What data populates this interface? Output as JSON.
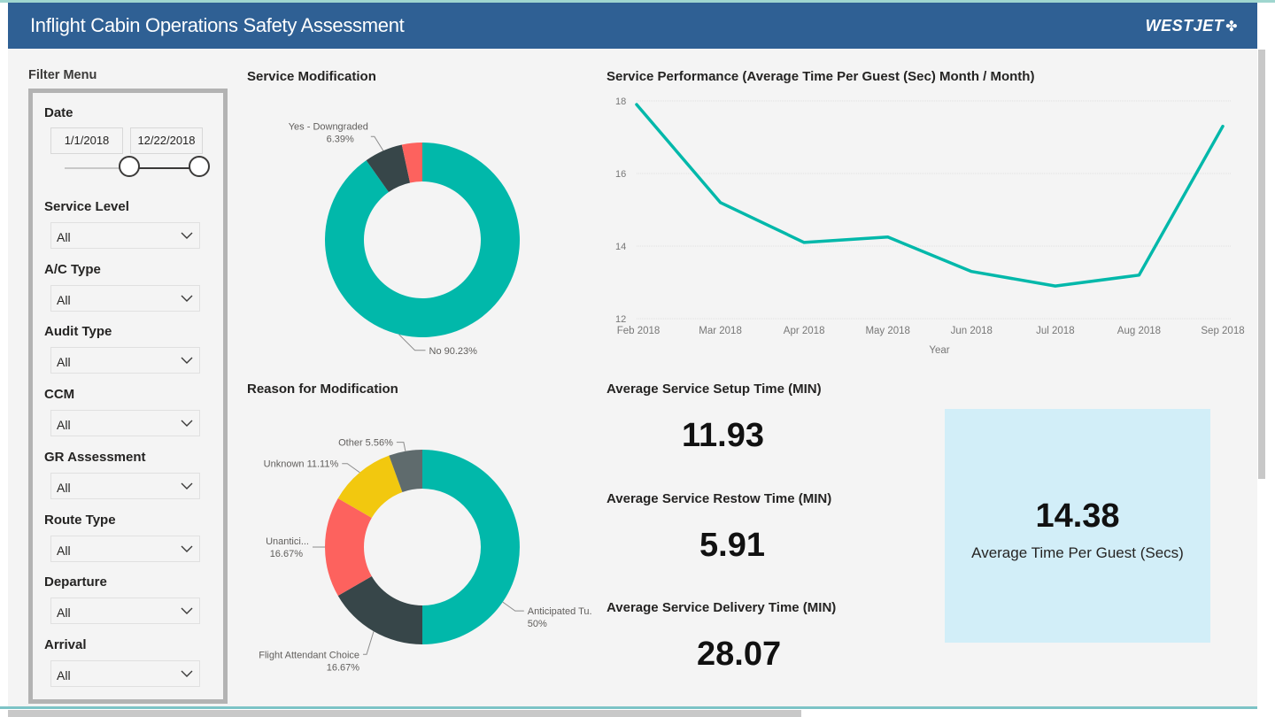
{
  "header": {
    "title_bold": "Inflight",
    "title_rest": " Cabin Operations Safety Assessment",
    "logo_text": "WESTJET",
    "logo_icon": "maple-leaf-icon"
  },
  "filters": {
    "menu_label": "Filter Menu",
    "date": {
      "label": "Date",
      "start": "1/1/2018",
      "end": "12/22/2018",
      "range_fraction": [
        0.48,
        1.0
      ]
    },
    "items": [
      {
        "label": "Service Level",
        "value": "All"
      },
      {
        "label": "A/C Type",
        "value": "All"
      },
      {
        "label": "Audit Type",
        "value": "All"
      },
      {
        "label": "CCM",
        "value": "All"
      },
      {
        "label": "GR Assessment",
        "value": "All"
      },
      {
        "label": "Route Type",
        "value": "All"
      },
      {
        "label": "Departure",
        "value": "All"
      },
      {
        "label": "Arrival",
        "value": "All"
      }
    ]
  },
  "sections": {
    "service_modification": "Service Modification",
    "reason_for_modification": "Reason for Modification",
    "service_performance": "Service Performance (Average Time Per Guest (Sec) Month / Month)"
  },
  "kpis": {
    "setup_title": "Average Service Setup Time (MIN)",
    "setup_value": "11.93",
    "restow_title": "Average Service Restow Time (MIN)",
    "restow_value": "5.91",
    "delivery_title": "Average Service Delivery Time (MIN)",
    "delivery_value": "28.07",
    "card_value": "14.38",
    "card_label": "Average Time Per Guest (Secs)"
  },
  "colors": {
    "header": "#2f6094",
    "teal": "#01b8aa",
    "dark": "#374649",
    "red": "#fd625e",
    "yellow": "#f2c80f",
    "gray": "#5f6b6d",
    "card": "#d2eef8"
  },
  "chart_data": [
    {
      "type": "pie",
      "title": "Service Modification",
      "slices": [
        {
          "label": "No",
          "value": 90.23,
          "display": "No 90.23%",
          "color": "#01b8aa"
        },
        {
          "label": "Yes - Downgraded",
          "value": 6.39,
          "display": "6.39%",
          "color": "#374649"
        },
        {
          "label": "",
          "value": 3.38,
          "display": "",
          "color": "#fd625e"
        }
      ]
    },
    {
      "type": "pie",
      "title": "Reason for Modification",
      "slices": [
        {
          "label": "Anticipated Tu...",
          "value": 50,
          "display": "50%",
          "color": "#01b8aa"
        },
        {
          "label": "Flight Attendant Choice",
          "value": 16.67,
          "display": "16.67%",
          "color": "#374649"
        },
        {
          "label": "Unantici...",
          "value": 16.67,
          "display": "16.67%",
          "color": "#fd625e"
        },
        {
          "label": "Unknown",
          "value": 11.11,
          "display": "Unknown 11.11%",
          "color": "#f2c80f"
        },
        {
          "label": "Other",
          "value": 5.56,
          "display": "Other 5.56%",
          "color": "#5f6b6d"
        }
      ]
    },
    {
      "type": "line",
      "title": "Service Performance (Average Time Per Guest (Sec) Month / Month)",
      "xlabel": "Year",
      "ylabel": "",
      "categories": [
        "Feb 2018",
        "Mar 2018",
        "Apr 2018",
        "May 2018",
        "Jun 2018",
        "Jul 2018",
        "Aug 2018",
        "Sep 2018"
      ],
      "values": [
        17.9,
        15.2,
        14.1,
        14.25,
        13.3,
        12.9,
        13.2,
        17.3
      ],
      "ylim": [
        12,
        18
      ],
      "yticks": [
        12,
        14,
        16,
        18
      ],
      "grid": true,
      "color": "#01b8aa"
    }
  ]
}
